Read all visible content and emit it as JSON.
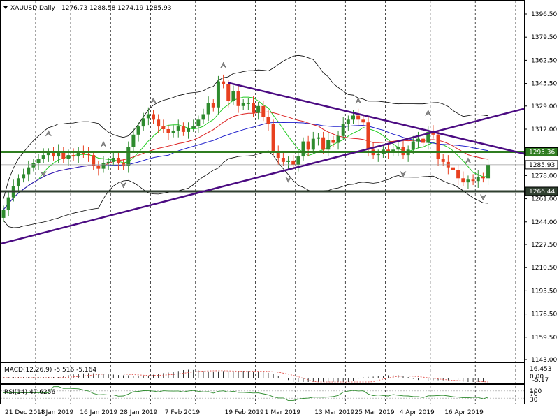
{
  "header": {
    "symbol": "XAUUSD,Daily",
    "ohlc": "1276.73 1288.58 1274.19 1285.93"
  },
  "macd_label": "MACD(12,26,9) -5.516 -5.164",
  "rsi_label": "RSI(14) 47.6256",
  "macd_scale": [
    "16.453",
    "0.00",
    "-5.17"
  ],
  "rsi_scale": [
    "100",
    "70",
    "30"
  ],
  "price_axis": {
    "ticks": [
      "1396.50",
      "1379.50",
      "1362.50",
      "1345.50",
      "1329.00",
      "1312.00",
      "1295.00",
      "1278.00",
      "1261.00",
      "1244.00",
      "1227.50",
      "1210.50",
      "1193.50",
      "1176.50",
      "1159.50",
      "1143.00"
    ],
    "current_price": "1285.93",
    "resistance_label": "1295.36",
    "support_label": "1266.44"
  },
  "date_axis": [
    "21 Dec 2018",
    "4 Jan 2019",
    "16 Jan 2019",
    "28 Jan 2019",
    "7 Feb 2019",
    "19 Feb 2019",
    "1 Mar 2019",
    "13 Mar 2019",
    "25 Mar 2019",
    "4 Apr 2019",
    "16 Apr 2019"
  ],
  "colors": {
    "bull": "#2e8b2e",
    "bear": "#e8401f",
    "horizontal_levels": "#2f7d20",
    "trendlines": "#4b0b82",
    "ma_fast": "#22cc22",
    "ma_mid": "#dd2222",
    "ma_slow": "#2222cc",
    "bands": "#000000"
  },
  "chart_data": {
    "type": "candlestick",
    "symbol": "XAUUSD",
    "timeframe": "Daily",
    "ylim": [
      1143.0,
      1396.5
    ],
    "x_labels": [
      "21 Dec 2018",
      "4 Jan 2019",
      "16 Jan 2019",
      "28 Jan 2019",
      "7 Feb 2019",
      "19 Feb 2019",
      "1 Mar 2019",
      "13 Mar 2019",
      "25 Mar 2019",
      "4 Apr 2019",
      "16 Apr 2019"
    ],
    "close": [
      1253,
      1262,
      1270,
      1276,
      1279,
      1284,
      1287,
      1290,
      1293,
      1295,
      1292,
      1296,
      1290,
      1293,
      1292,
      1296,
      1294,
      1293,
      1285,
      1283,
      1287,
      1288,
      1291,
      1287,
      1285,
      1299,
      1308,
      1314,
      1320,
      1323,
      1319,
      1314,
      1312,
      1309,
      1311,
      1314,
      1310,
      1313,
      1314,
      1319,
      1323,
      1331,
      1328,
      1347,
      1345,
      1333,
      1340,
      1329,
      1331,
      1331,
      1324,
      1329,
      1321,
      1316,
      1296,
      1291,
      1288,
      1289,
      1286,
      1292,
      1303,
      1297,
      1305,
      1306,
      1297,
      1304,
      1302,
      1307,
      1316,
      1319,
      1322,
      1319,
      1317,
      1297,
      1293,
      1294,
      1297,
      1295,
      1297,
      1299,
      1293,
      1297,
      1303,
      1305,
      1302,
      1310,
      1308,
      1290,
      1288,
      1284,
      1282,
      1276,
      1273,
      1275,
      1274,
      1277,
      1276,
      1285.93
    ],
    "levels": {
      "resistance": 1295.36,
      "support": 1266.44,
      "last": 1285.93
    }
  }
}
